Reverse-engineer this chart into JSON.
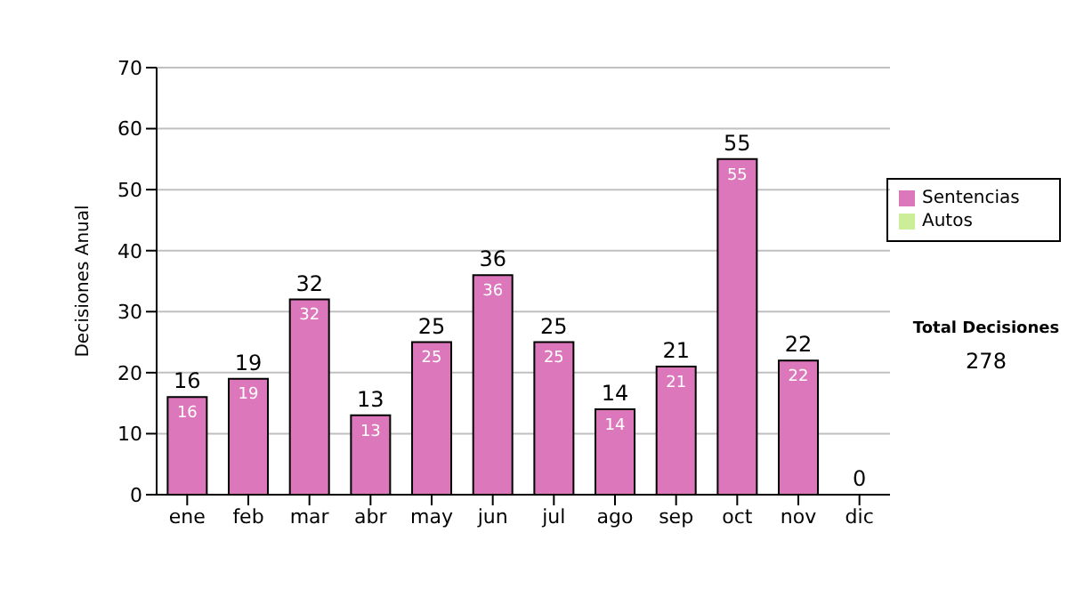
{
  "chart_data": {
    "type": "bar",
    "ylabel": "Decisiones Anual",
    "categories": [
      "ene",
      "feb",
      "mar",
      "abr",
      "may",
      "jun",
      "jul",
      "ago",
      "sep",
      "oct",
      "nov",
      "dic"
    ],
    "series": [
      {
        "name": "Sentencias",
        "color": "#dd77bb",
        "values": [
          16,
          19,
          32,
          13,
          25,
          36,
          25,
          14,
          21,
          55,
          22,
          0
        ],
        "value_labels": [
          "16",
          "19",
          "32",
          "13",
          "25",
          "36",
          "25",
          "14",
          "21",
          "55",
          "22",
          null
        ]
      },
      {
        "name": "Autos",
        "color": "#ccee99",
        "values": [
          0,
          0,
          0,
          0,
          0,
          0,
          0,
          0,
          0,
          0,
          0,
          0
        ]
      }
    ],
    "stacked": true,
    "totals": [
      "16",
      "19",
      "32",
      "13",
      "25",
      "36",
      "25",
      "14",
      "21",
      "55",
      "22",
      "0"
    ],
    "ylim": [
      0,
      70
    ],
    "yticks": [
      0,
      10,
      20,
      30,
      40,
      50,
      60,
      70
    ],
    "grid": "y",
    "legend": "right",
    "annotations": [
      "Total Decisiones",
      "278"
    ]
  }
}
